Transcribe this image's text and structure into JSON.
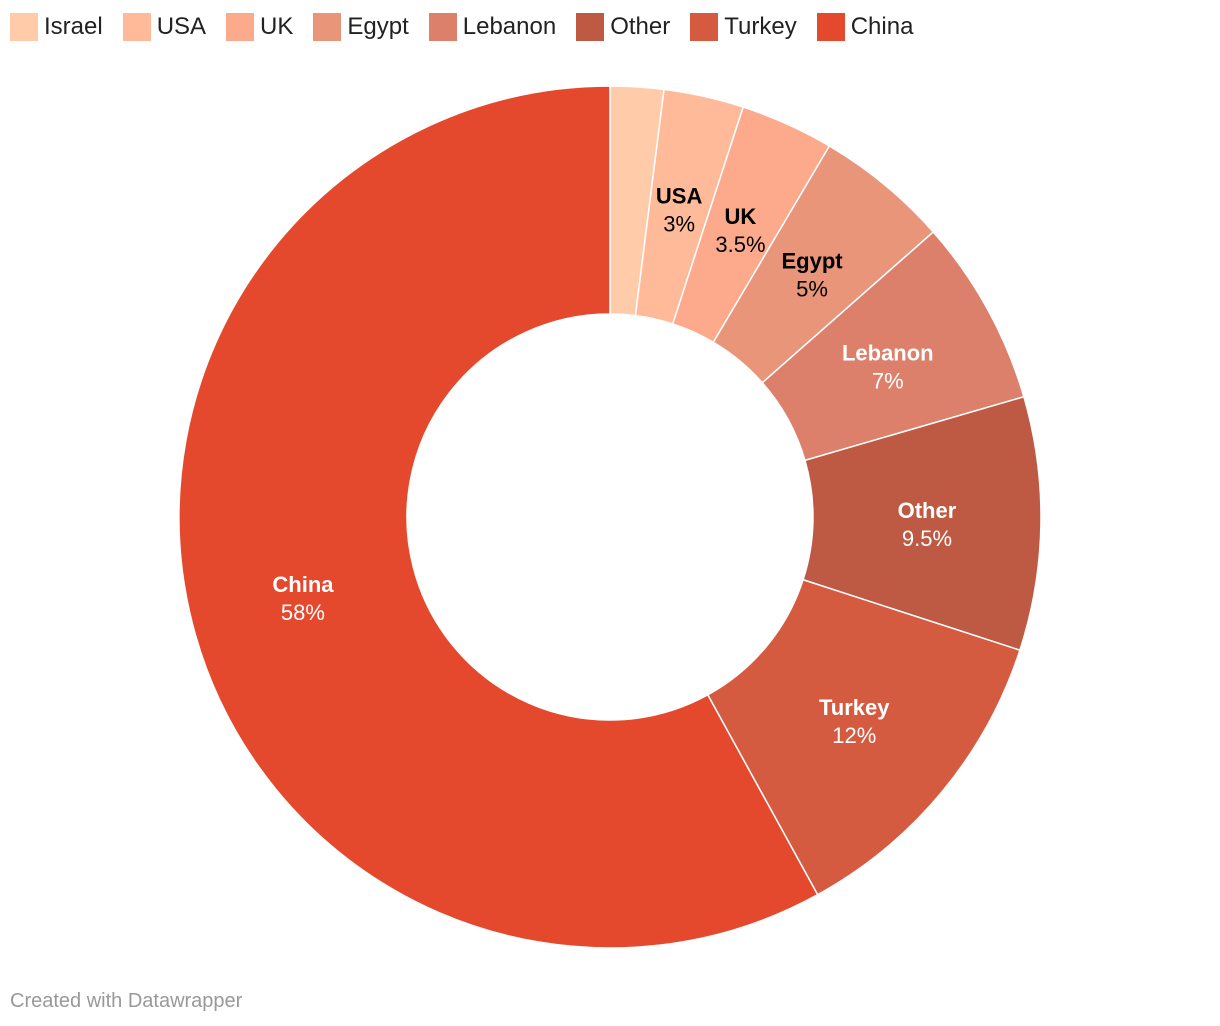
{
  "chart_data": {
    "type": "pie",
    "donut": true,
    "legend_position": "top-left",
    "slices": [
      {
        "label": "Israel",
        "value": 2,
        "display": "",
        "color": "#FFCBA8",
        "label_color": "#000000"
      },
      {
        "label": "USA",
        "value": 3,
        "display": "3%",
        "color": "#FFBA9A",
        "label_color": "#000000"
      },
      {
        "label": "UK",
        "value": 3.5,
        "display": "3.5%",
        "color": "#FDA98B",
        "label_color": "#000000"
      },
      {
        "label": "Egypt",
        "value": 5,
        "display": "5%",
        "color": "#E8957A",
        "label_color": "#000000"
      },
      {
        "label": "Lebanon",
        "value": 7,
        "display": "7%",
        "color": "#DC806C",
        "label_color": "#ffffff"
      },
      {
        "label": "Other",
        "value": 9.5,
        "display": "9.5%",
        "color": "#BE5A43",
        "label_color": "#ffffff"
      },
      {
        "label": "Turkey",
        "value": 12,
        "display": "12%",
        "color": "#D55B40",
        "label_color": "#ffffff"
      },
      {
        "label": "China",
        "value": 58,
        "display": "58%",
        "color": "#E4492D",
        "label_color": "#ffffff"
      }
    ]
  },
  "footer": {
    "credit": "Created with Datawrapper"
  }
}
